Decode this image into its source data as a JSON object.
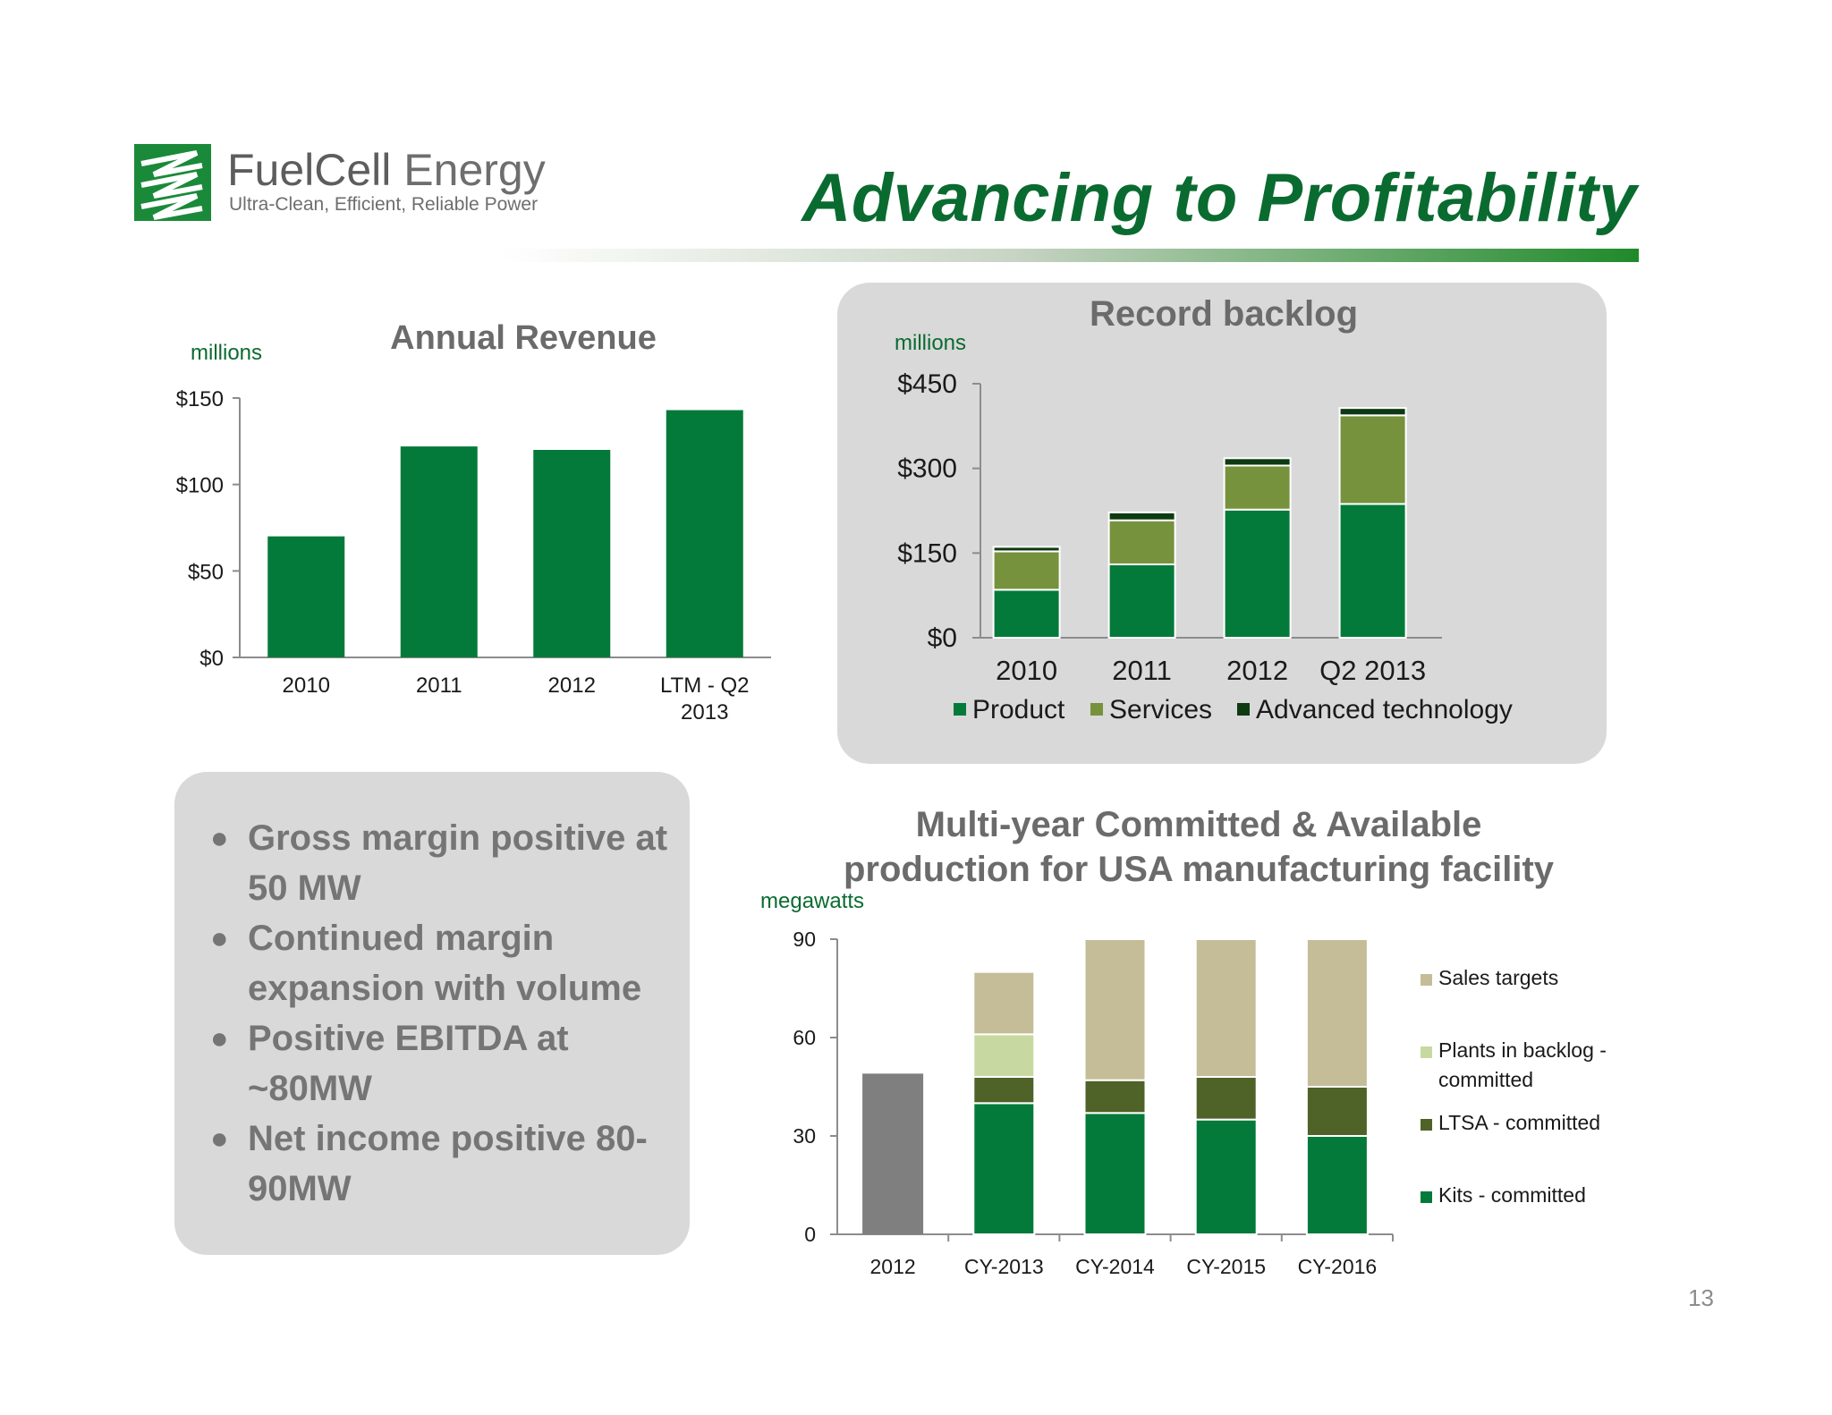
{
  "header": {
    "logo_name_part1": "FuelCell",
    "logo_name_part2": " Energy",
    "logo_tagline": "Ultra-Clean, Efficient, Reliable Power",
    "title": "Advancing to Profitability"
  },
  "colors": {
    "brand_green": "#0a6b30",
    "product_green": "#047a3a",
    "services_green": "#76923c",
    "advanced_dark": "#0e3a12",
    "sales_targets": "#c4bd97",
    "plants_backlog": "#c7d9a0",
    "ltsa": "#4f6228",
    "kits": "#047a3a",
    "gray_2012": "#7f7f7f"
  },
  "bullets": [
    "Gross margin positive at 50 MW",
    "Continued margin expansion with volume",
    "Positive EBITDA at ~80MW",
    "Net income positive 80-90MW"
  ],
  "page_number": "13",
  "chart_data": [
    {
      "id": "annual-revenue",
      "type": "bar",
      "title": "Annual Revenue",
      "unit_label": "millions",
      "categories": [
        "2010",
        "2011",
        "2012",
        "LTM - Q2 2013"
      ],
      "category_lines": [
        [
          "2010"
        ],
        [
          "2011"
        ],
        [
          "2012"
        ],
        [
          "LTM - Q2",
          "2013"
        ]
      ],
      "values": [
        70,
        122,
        120,
        143
      ],
      "ylim": [
        0,
        150
      ],
      "yticks": [
        0,
        50,
        100,
        150
      ],
      "ytick_labels": [
        "$0",
        "$50",
        "$100",
        "$150"
      ],
      "grid": false
    },
    {
      "id": "record-backlog",
      "type": "bar",
      "stacked": true,
      "title": "Record backlog",
      "unit_label": "millions",
      "categories": [
        "2010",
        "2011",
        "2012",
        "Q2 2013"
      ],
      "series": [
        {
          "name": "Product",
          "values": [
            85,
            130,
            227,
            237
          ]
        },
        {
          "name": "Services",
          "values": [
            68,
            78,
            78,
            157
          ]
        },
        {
          "name": "Advanced technology",
          "values": [
            8,
            14,
            13,
            13
          ]
        }
      ],
      "ylim": [
        0,
        450
      ],
      "yticks": [
        0,
        150,
        300,
        450
      ],
      "ytick_labels": [
        "$0",
        "$150",
        "$300",
        "$450"
      ],
      "legend_position": "bottom",
      "grid": false
    },
    {
      "id": "multi-year-production",
      "type": "bar",
      "stacked": true,
      "title_lines": [
        "Multi-year Committed & Available",
        "production for USA manufacturing facility"
      ],
      "unit_label": "megawatts",
      "categories": [
        "2012",
        "CY-2013",
        "CY-2014",
        "CY-2015",
        "CY-2016"
      ],
      "series": [
        {
          "name": "Kits - committed",
          "values": [
            0,
            40,
            37,
            35,
            30
          ]
        },
        {
          "name": "LTSA - committed",
          "values": [
            0,
            8,
            10,
            13,
            15
          ]
        },
        {
          "name": "Plants in backlog - committed",
          "values": [
            0,
            13,
            0,
            0,
            0
          ]
        },
        {
          "name": "Sales targets",
          "values": [
            0,
            19,
            43,
            42,
            45
          ]
        }
      ],
      "actual_2012": 49,
      "legend_order": [
        "Sales targets",
        "Plants in backlog - committed",
        "LTSA - committed",
        "Kits - committed"
      ],
      "legend_lines": [
        [
          "Sales targets"
        ],
        [
          "Plants in backlog -",
          "committed"
        ],
        [
          "LTSA - committed"
        ],
        [
          "Kits - committed"
        ]
      ],
      "ylim": [
        0,
        90
      ],
      "yticks": [
        0,
        30,
        60,
        90
      ],
      "legend_position": "right",
      "grid": false
    }
  ]
}
